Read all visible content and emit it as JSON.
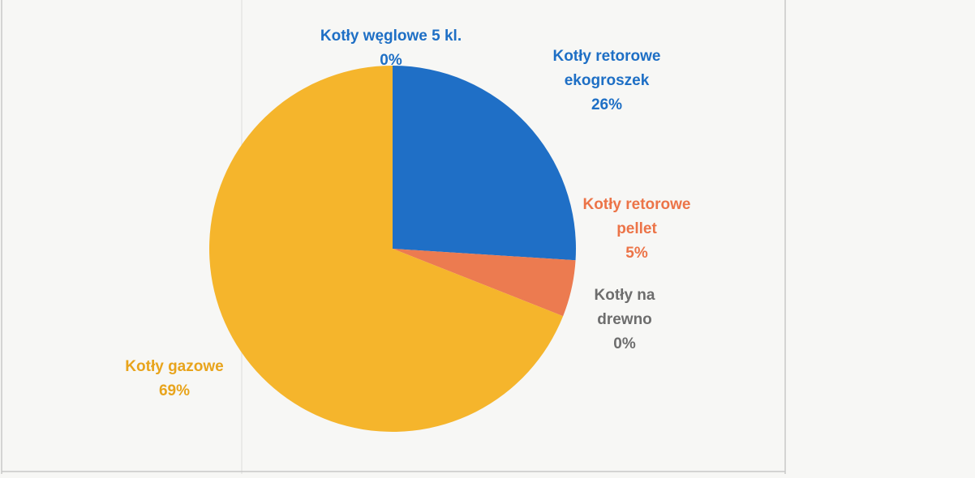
{
  "chart_data": {
    "type": "pie",
    "categories": [
      "Kotły węglowe 5 kl.",
      "Kotły retorowe ekogroszek",
      "Kotły retorowe pellet",
      "Kotły na drewno",
      "Kotły gazowe"
    ],
    "values": [
      0,
      26,
      5,
      0,
      69
    ],
    "value_labels": [
      "0%",
      "26%",
      "5%",
      "0%",
      "69%"
    ],
    "colors": [
      "#2a6ebb",
      "#1f6fc6",
      "#ec7b50",
      "#7f7f7f",
      "#f5b52c"
    ]
  }
}
